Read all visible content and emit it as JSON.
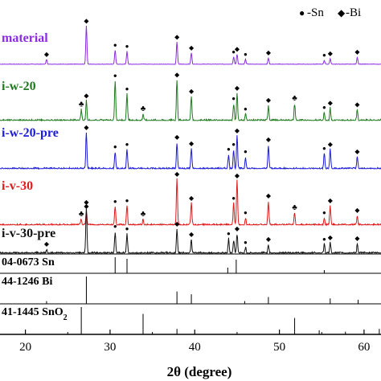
{
  "chart_data": {
    "type": "line",
    "xlabel": "2θ (degree)",
    "xlim": [
      17,
      62
    ],
    "xticks": [
      "20",
      "30",
      "40",
      "50",
      "60"
    ],
    "xtick_values": [
      20,
      30,
      40,
      50,
      60
    ],
    "legend": {
      "placement": "top-right",
      "items": [
        {
          "symbol": "●",
          "label": "-Sn"
        },
        {
          "symbol": "◆",
          "label": "-Bi"
        }
      ]
    },
    "series": [
      {
        "name": "material",
        "color": "#8B2BE2",
        "peaks": [
          [
            22.5,
            0.12
          ],
          [
            27.2,
            0.95
          ],
          [
            30.6,
            0.35
          ],
          [
            32.0,
            0.32
          ],
          [
            37.9,
            0.55
          ],
          [
            39.6,
            0.28
          ],
          [
            44.6,
            0.18
          ],
          [
            45.0,
            0.25
          ],
          [
            46.0,
            0.12
          ],
          [
            48.7,
            0.16
          ],
          [
            55.3,
            0.1
          ],
          [
            56.0,
            0.14
          ],
          [
            59.2,
            0.18
          ]
        ],
        "markers": [
          [
            "◆",
            22.5
          ],
          [
            "◆",
            27.2
          ],
          [
            "●",
            30.6
          ],
          [
            "●",
            32.0
          ],
          [
            "◆",
            37.9
          ],
          [
            "◆",
            39.6
          ],
          [
            "●",
            44.6
          ],
          [
            "◆",
            45.0
          ],
          [
            "●",
            46.0
          ],
          [
            "◆",
            48.7
          ],
          [
            "●",
            55.3
          ],
          [
            "◆",
            56.0
          ],
          [
            "◆",
            59.2
          ]
        ]
      },
      {
        "name": "i-w-20",
        "color": "#1F7A1F",
        "peaks": [
          [
            26.6,
            0.25
          ],
          [
            27.2,
            0.45
          ],
          [
            30.6,
            0.9
          ],
          [
            32.0,
            0.6
          ],
          [
            33.9,
            0.15
          ],
          [
            37.9,
            0.92
          ],
          [
            39.6,
            0.55
          ],
          [
            44.6,
            0.38
          ],
          [
            45.0,
            0.62
          ],
          [
            46.0,
            0.15
          ],
          [
            48.7,
            0.35
          ],
          [
            51.8,
            0.38
          ],
          [
            55.3,
            0.18
          ],
          [
            56.0,
            0.28
          ],
          [
            59.2,
            0.25
          ]
        ],
        "markers": [
          [
            "♣",
            26.6
          ],
          [
            "◆",
            27.2
          ],
          [
            "●",
            30.6
          ],
          [
            "●",
            32.0
          ],
          [
            "♣",
            33.9
          ],
          [
            "◆",
            37.9
          ],
          [
            "◆",
            39.6
          ],
          [
            "●",
            44.6
          ],
          [
            "◆",
            45.0
          ],
          [
            "●",
            46.0
          ],
          [
            "◆",
            48.7
          ],
          [
            "♣",
            51.8
          ],
          [
            "●",
            55.3
          ],
          [
            "◆",
            56.0
          ],
          [
            "◆",
            59.2
          ]
        ]
      },
      {
        "name": "i-w-20-pre",
        "color": "#1C1CD8",
        "peaks": [
          [
            27.2,
            0.75
          ],
          [
            30.6,
            0.35
          ],
          [
            32.0,
            0.4
          ],
          [
            37.9,
            0.55
          ],
          [
            39.6,
            0.42
          ],
          [
            44.0,
            0.3
          ],
          [
            44.6,
            0.4
          ],
          [
            45.0,
            0.68
          ],
          [
            46.0,
            0.25
          ],
          [
            48.7,
            0.5
          ],
          [
            55.3,
            0.32
          ],
          [
            56.0,
            0.4
          ],
          [
            59.2,
            0.25
          ]
        ],
        "markers": [
          [
            "◆",
            27.2
          ],
          [
            "●",
            30.6
          ],
          [
            "●",
            32.0
          ],
          [
            "◆",
            37.9
          ],
          [
            "◆",
            39.6
          ],
          [
            "●",
            44.0
          ],
          [
            "●",
            44.6
          ],
          [
            "◆",
            45.0
          ],
          [
            "●",
            46.0
          ],
          [
            "◆",
            48.7
          ],
          [
            "●",
            55.3
          ],
          [
            "◆",
            56.0
          ],
          [
            "◆",
            59.2
          ]
        ]
      },
      {
        "name": "i-v-30",
        "color": "#E01919",
        "peaks": [
          [
            26.6,
            0.12
          ],
          [
            27.2,
            0.28
          ],
          [
            30.6,
            0.38
          ],
          [
            32.0,
            0.4
          ],
          [
            33.9,
            0.12
          ],
          [
            37.9,
            0.95
          ],
          [
            39.6,
            0.45
          ],
          [
            44.6,
            0.45
          ],
          [
            45.0,
            0.92
          ],
          [
            46.0,
            0.15
          ],
          [
            48.7,
            0.5
          ],
          [
            51.8,
            0.25
          ],
          [
            55.3,
            0.15
          ],
          [
            56.0,
            0.4
          ],
          [
            59.2,
            0.2
          ]
        ],
        "markers": [
          [
            "♣",
            26.6
          ],
          [
            "◆",
            27.2
          ],
          [
            "●",
            30.6
          ],
          [
            "●",
            32.0
          ],
          [
            "♣",
            33.9
          ],
          [
            "◆",
            37.9
          ],
          [
            "◆",
            39.6
          ],
          [
            "●",
            44.6
          ],
          [
            "◆",
            45.0
          ],
          [
            "●",
            46.0
          ],
          [
            "◆",
            48.7
          ],
          [
            "♣",
            51.8
          ],
          [
            "●",
            55.3
          ],
          [
            "◆",
            56.0
          ],
          [
            "◆",
            59.2
          ]
        ]
      },
      {
        "name": "i-v-30-pre",
        "color": "#111111",
        "peaks": [
          [
            22.5,
            0.08
          ],
          [
            27.2,
            0.95
          ],
          [
            30.6,
            0.45
          ],
          [
            32.0,
            0.4
          ],
          [
            37.9,
            0.5
          ],
          [
            39.6,
            0.28
          ],
          [
            44.0,
            0.3
          ],
          [
            44.6,
            0.28
          ],
          [
            45.0,
            0.4
          ],
          [
            46.0,
            0.12
          ],
          [
            48.7,
            0.18
          ],
          [
            55.3,
            0.18
          ],
          [
            56.0,
            0.22
          ],
          [
            59.2,
            0.2
          ]
        ],
        "markers": [
          [
            "◆",
            22.5
          ],
          [
            "◆",
            27.2
          ],
          [
            "●",
            30.6
          ],
          [
            "●",
            32.0
          ],
          [
            "◆",
            37.9
          ],
          [
            "◆",
            39.6
          ],
          [
            "●",
            44.0
          ],
          [
            "◆",
            45.0
          ],
          [
            "●",
            46.0
          ],
          [
            "◆",
            48.7
          ],
          [
            "●",
            55.3
          ],
          [
            "◆",
            56.0
          ],
          [
            "◆",
            59.2
          ]
        ]
      }
    ],
    "references": [
      {
        "label": "04-0673 Sn",
        "lines": [
          [
            30.6,
            1.0
          ],
          [
            32.0,
            0.9
          ],
          [
            43.9,
            0.35
          ],
          [
            44.9,
            0.85
          ],
          [
            55.3,
            0.2
          ],
          [
            62.5,
            0.2
          ]
        ]
      },
      {
        "label": "44-1246 Bi",
        "lines": [
          [
            22.5,
            0.1
          ],
          [
            27.2,
            1.0
          ],
          [
            37.9,
            0.45
          ],
          [
            39.6,
            0.35
          ],
          [
            45.9,
            0.1
          ],
          [
            48.7,
            0.25
          ],
          [
            56.0,
            0.2
          ],
          [
            59.3,
            0.15
          ]
        ]
      },
      {
        "label": "41-1445 SnO",
        "label_sub": "2",
        "lines": [
          [
            26.6,
            1.0
          ],
          [
            33.9,
            0.75
          ],
          [
            37.9,
            0.2
          ],
          [
            51.8,
            0.6
          ],
          [
            54.7,
            0.15
          ],
          [
            57.8,
            0.1
          ],
          [
            61.8,
            0.2
          ]
        ]
      }
    ]
  }
}
